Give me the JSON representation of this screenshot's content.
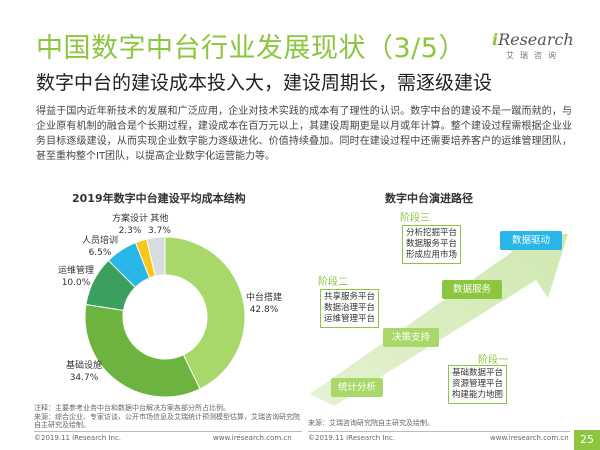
{
  "header": {
    "title": "中国数字中台行业发展现状（3/5）",
    "subtitle": "数字中台的建设成本投入大，建设周期长，需逐级建设",
    "logo_main_prefix": "i",
    "logo_main_rest": "Research",
    "logo_sub": "艾瑞咨询"
  },
  "body_paragraph": "得益于国内近年新技术的发展和广泛应用，企业对技术实践的成本有了理性的认识。数字中台的建设不是一蹴而就的，与企业原有机制的融合是个长期过程，建设成本在百万元以上，其建设周期更是以月或年计算。整个建设过程需根据企业业务目标逐级建设，从而实现企业数字能力逐级进化、价值持续叠加。同时在建设过程中还需要培养客户的运维管理团队，甚至重构整个IT团队，以提高企业数字化运营能力等。",
  "chart_data": {
    "type": "pie",
    "title": "2019年数字中台建设平均成本结构",
    "slices": [
      {
        "label": "中台搭建",
        "value": 42.8,
        "value_text": "42.8%",
        "color": "#a8d86a"
      },
      {
        "label": "基础设施",
        "value": 34.7,
        "value_text": "34.7%",
        "color": "#6db33f"
      },
      {
        "label": "运维管理",
        "value": 10.0,
        "value_text": "10.0%",
        "color": "#3a9f5f"
      },
      {
        "label": "人员培训",
        "value": 6.5,
        "value_text": "6.5%",
        "color": "#29b6e8"
      },
      {
        "label": "方案设计",
        "value": 2.3,
        "value_text": "2.3%",
        "color": "#f7c719"
      },
      {
        "label": "其他",
        "value": 3.7,
        "value_text": "3.7%",
        "color": "#d8dcde"
      }
    ]
  },
  "diagram": {
    "title": "数字中台演进路径",
    "stage3": {
      "label": "阶段三",
      "items": [
        "分析挖掘平台",
        "数据服务平台",
        "形成应用市场"
      ],
      "result": "数据驱动"
    },
    "stage2": {
      "label": "阶段二",
      "items": [
        "共享服务平台",
        "数据治理平台",
        "运维管理平台"
      ],
      "result": "数据服务"
    },
    "stage1": {
      "label": "阶段一",
      "items": [
        "基础数据平台",
        "资源管理平台",
        "构建能力地图"
      ],
      "result": "统计分析"
    },
    "middle": "决策支持"
  },
  "notes": {
    "note_line1": "注释：主要参考业务中台和数据中台解决方案各部分所占比例。",
    "note_line2": "来源：综合企业、专家访谈、公开市场信息及艾瑞统计预测模型估算，艾瑞咨询研究院自主研究及绘制。",
    "source_right": "来源：艾瑞咨询研究院自主研究及绘制。"
  },
  "footer": {
    "copyright_left": "©2019.11 iResearch Inc.",
    "url_left": "www.iresearch.com.cn",
    "copyright_right": "©2019.11 iResearch Inc.",
    "url_right": "www.iresearch.com.cn",
    "page_number": "25"
  }
}
